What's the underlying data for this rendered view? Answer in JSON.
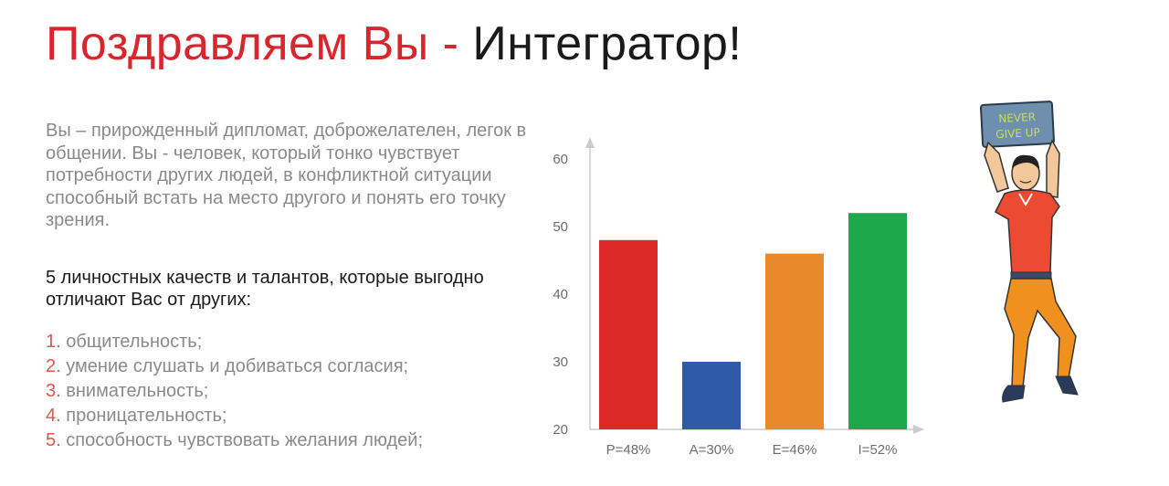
{
  "header": {
    "title_highlight": "Поздравляем Вы - ",
    "title_rest": "Интегратор!"
  },
  "description": "Вы – прирожденный дипломат, доброжелателен, легок в общении. Вы - человек, который тонко чувствует потребности других людей, в конфликтной ситуации способный встать на место другого и понять его точку зрения.",
  "qualities": {
    "title": "5 личностных качеств и талантов, которые выгодно отличают Вас от других:",
    "items": [
      {
        "num": "1.",
        "text": "общительность;"
      },
      {
        "num": "2.",
        "text": "умение слушать и добиваться согласия;"
      },
      {
        "num": "3.",
        "text": "внимательность;"
      },
      {
        "num": "4.",
        "text": "проницательность;"
      },
      {
        "num": "5.",
        "text": "способность чувствовать желания людей;"
      }
    ]
  },
  "illustration": {
    "sign_line1": "NEVER",
    "sign_line2": "GIVE UP"
  },
  "chart_data": {
    "type": "bar",
    "categories": [
      "P=48%",
      "A=30%",
      "E=46%",
      "I=52%"
    ],
    "values": [
      48,
      30,
      46,
      52
    ],
    "colors": [
      "#dd2a29",
      "#2e5aa8",
      "#e9892b",
      "#1ea74b"
    ],
    "ylim": [
      20,
      60
    ],
    "yticks": [
      20,
      30,
      40,
      50,
      60
    ],
    "title": "",
    "xlabel": "",
    "ylabel": "",
    "grid": false,
    "legend": "none"
  }
}
